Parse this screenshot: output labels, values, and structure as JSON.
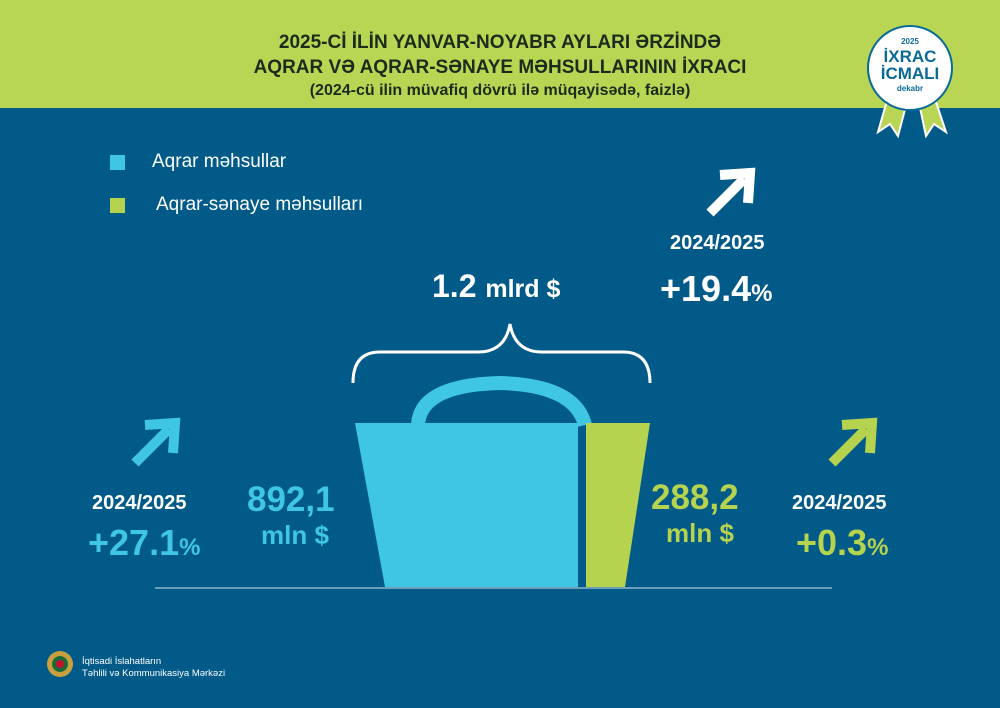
{
  "header": {
    "line1": "2025-Cİ İLİN YANVAR-NOYABR AYLARI ƏRZİNDƏ",
    "line2": "AQRAR VƏ AQRAR-SƏNAYE MƏHSULLARININ İXRACI",
    "subtitle": "(2024-cü ilin müvafiq dövrü ilə müqayisədə, faizlə)"
  },
  "badge": {
    "year": "2025",
    "line1": "İXRAC",
    "line2": "İCMALI",
    "month": "dekabr"
  },
  "legend": [
    {
      "label": "Aqrar məhsullar",
      "color": "#3ec6e2"
    },
    {
      "label": "Aqrar-sənaye məhsulları",
      "color": "#b5d34f"
    }
  ],
  "total": {
    "value": "1.2",
    "unit": "mlrd $",
    "period": "2024/2025",
    "change": "+19.4",
    "pct": "%"
  },
  "aqrar": {
    "value": "892,1",
    "unit": "mln $",
    "period": "2024/2025",
    "change": "+27.1",
    "pct": "%"
  },
  "sanaye": {
    "value": "288,2",
    "unit": "mln $",
    "period": "2024/2025",
    "change": "+0.3",
    "pct": "%"
  },
  "footer": {
    "line1": "İqtisadi İslahatların",
    "line2": "Təhlili və Kommunikasiya Mərkəzi"
  },
  "colors": {
    "header": "#b8d654",
    "background": "#025a89",
    "cyan": "#3ec6e2",
    "green": "#b5d34f"
  }
}
